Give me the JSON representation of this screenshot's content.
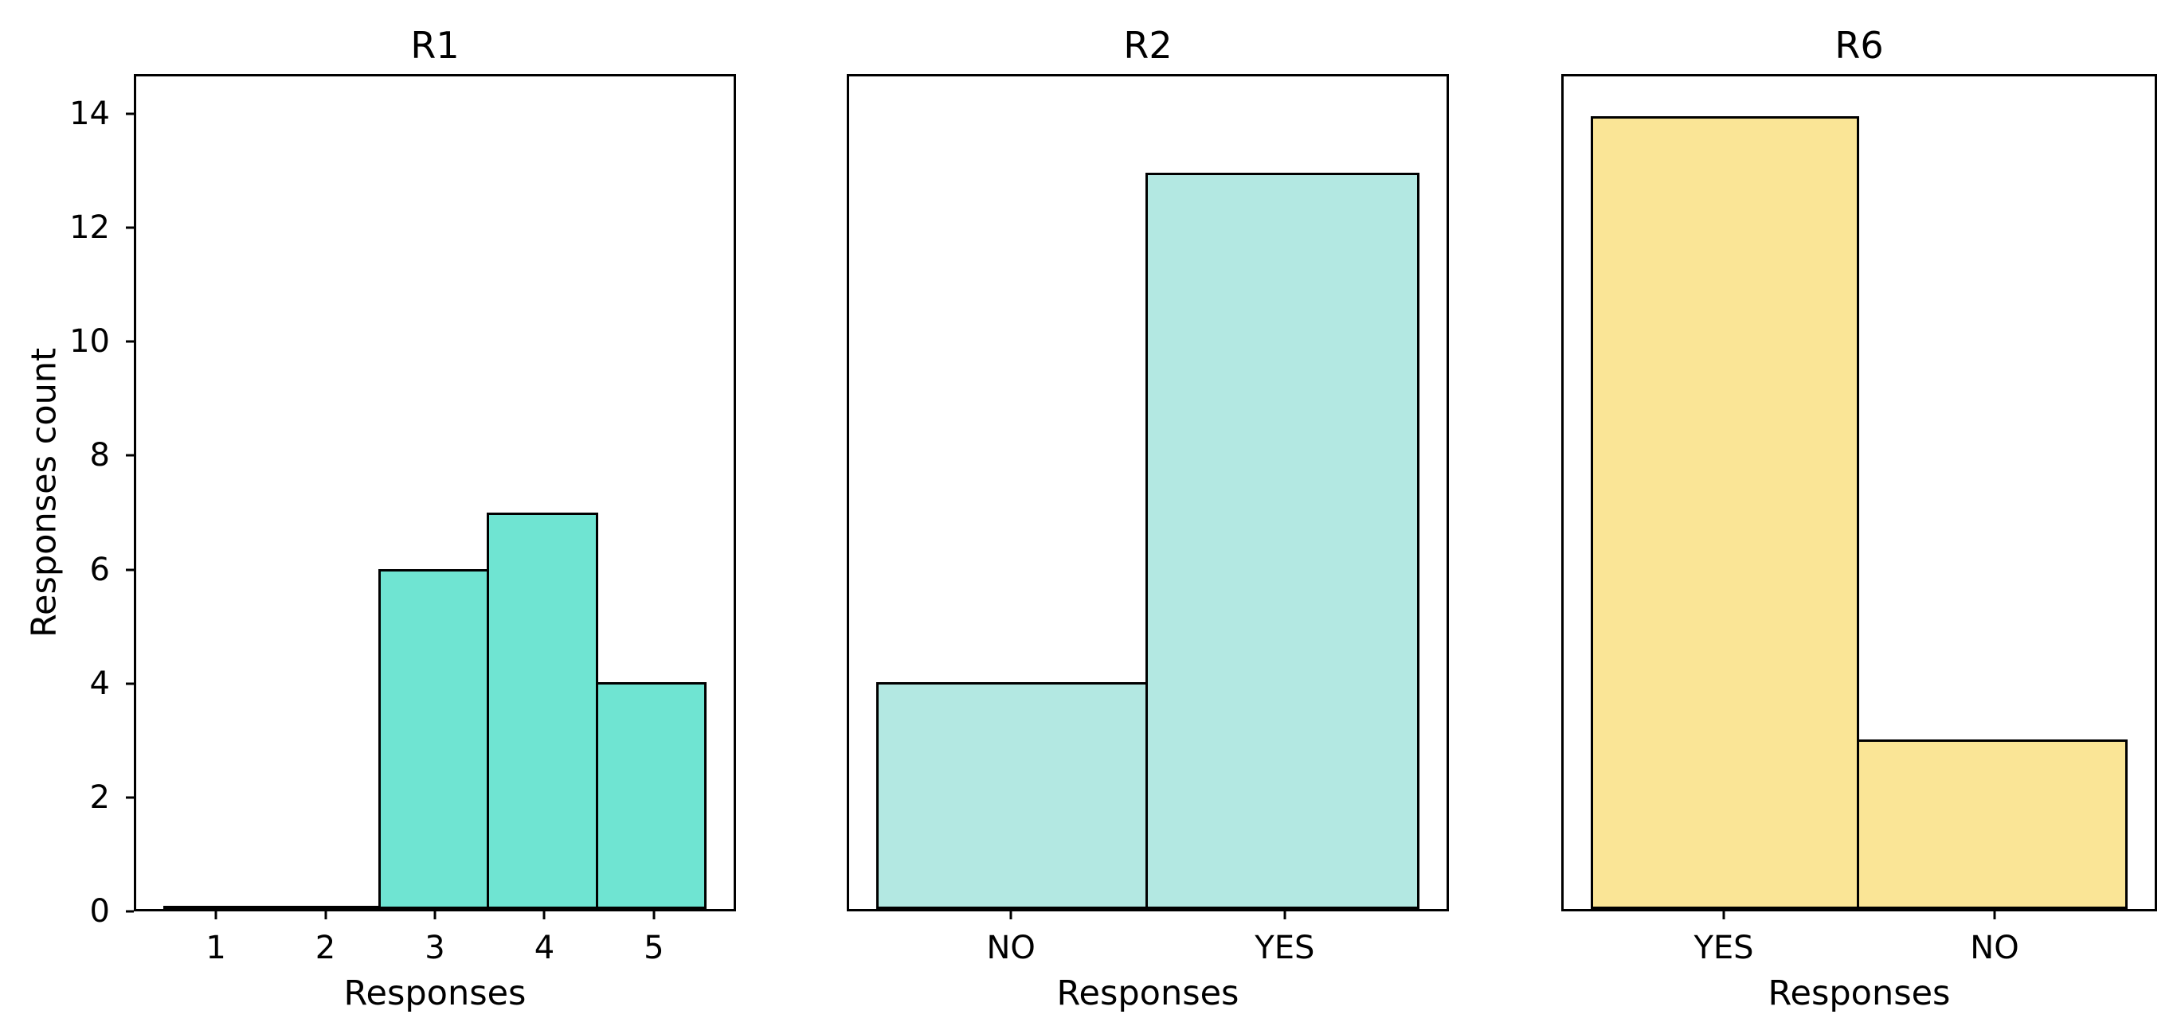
{
  "figure": {
    "background_color": "#FFFFFF",
    "text_color": "#000000"
  },
  "chart_data": [
    {
      "type": "bar",
      "title": "R1",
      "categories": [
        "1",
        "2",
        "3",
        "4",
        "5"
      ],
      "values": [
        0,
        0,
        6,
        7,
        4
      ],
      "xlabel": "Responses",
      "ylabel": "Responses count",
      "yticks": [
        0,
        2,
        4,
        6,
        8,
        10,
        12,
        14
      ],
      "ylim": [
        0,
        14.7
      ],
      "xlim": [
        0.25,
        5.75
      ],
      "bar_width": 1.0,
      "bar_color": "#6FE4D2",
      "edge_color": "#000000",
      "grid": "off",
      "legend": "none",
      "show_ytick_labels": true
    },
    {
      "type": "bar",
      "title": "R2",
      "categories": [
        "NO",
        "YES"
      ],
      "values": [
        4,
        13
      ],
      "xlabel": "Responses",
      "ylabel": "",
      "yticks": [],
      "ylim": [
        0,
        14.7
      ],
      "xlim": [
        -0.6,
        1.6
      ],
      "bar_width": 1.0,
      "bar_color": "#B3E8E2",
      "edge_color": "#000000",
      "grid": "off",
      "legend": "none",
      "show_ytick_labels": false
    },
    {
      "type": "bar",
      "title": "R6",
      "categories": [
        "YES",
        "NO"
      ],
      "values": [
        14,
        3
      ],
      "xlabel": "Responses",
      "ylabel": "",
      "yticks": [],
      "ylim": [
        0,
        14.7
      ],
      "xlim": [
        -0.6,
        1.6
      ],
      "bar_width": 1.0,
      "bar_color": "#FAE596",
      "edge_color": "#000000",
      "grid": "off",
      "legend": "none",
      "show_ytick_labels": false
    }
  ]
}
